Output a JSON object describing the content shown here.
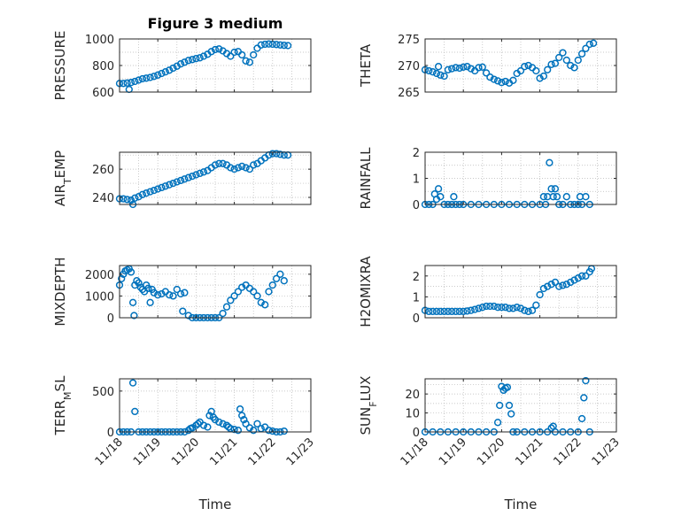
{
  "colors": {
    "marker": "#0072BD",
    "axis": "#262626",
    "grid": "#b8b8b8",
    "background": "#ffffff"
  },
  "chart_data": [
    {
      "type": "scatter",
      "title": "Figure 3 medium",
      "ylabel": "PRESSURE",
      "xlabel": "",
      "xlim": [
        0,
        5
      ],
      "ylim": [
        600,
        1000
      ],
      "yticks": [
        600,
        800,
        1000
      ],
      "xticks": [],
      "grid": true,
      "series": [
        {
          "x": [
            0.0,
            0.1,
            0.2,
            0.25,
            0.3,
            0.4,
            0.5,
            0.6,
            0.7,
            0.8,
            0.9,
            1.0,
            1.1,
            1.2,
            1.3,
            1.4,
            1.5,
            1.6,
            1.7,
            1.8,
            1.9,
            2.0,
            2.1,
            2.2,
            2.3,
            2.4,
            2.5,
            2.6,
            2.7,
            2.8,
            2.9,
            3.0,
            3.1,
            3.2,
            3.3,
            3.4,
            3.5,
            3.6,
            3.7,
            3.8,
            3.9,
            4.0,
            4.1,
            4.2,
            4.3,
            4.4
          ],
          "y": [
            665,
            665,
            668,
            620,
            672,
            680,
            690,
            700,
            705,
            710,
            718,
            728,
            740,
            752,
            765,
            780,
            795,
            812,
            825,
            838,
            845,
            852,
            858,
            870,
            885,
            905,
            920,
            925,
            910,
            890,
            870,
            900,
            905,
            880,
            835,
            825,
            880,
            930,
            955,
            960,
            962,
            960,
            958,
            955,
            952,
            950
          ]
        }
      ]
    },
    {
      "type": "scatter",
      "title": "",
      "ylabel": "THETA",
      "xlabel": "",
      "xlim": [
        0,
        5
      ],
      "ylim": [
        265,
        275
      ],
      "yticks": [
        265,
        270,
        275
      ],
      "xticks": [],
      "grid": true,
      "series": [
        {
          "x": [
            0.0,
            0.1,
            0.2,
            0.3,
            0.35,
            0.4,
            0.5,
            0.6,
            0.7,
            0.8,
            0.9,
            1.0,
            1.1,
            1.2,
            1.3,
            1.4,
            1.5,
            1.6,
            1.7,
            1.8,
            1.9,
            2.0,
            2.1,
            2.2,
            2.3,
            2.4,
            2.5,
            2.6,
            2.7,
            2.8,
            2.9,
            3.0,
            3.1,
            3.2,
            3.3,
            3.4,
            3.5,
            3.6,
            3.7,
            3.8,
            3.9,
            4.0,
            4.1,
            4.2,
            4.3,
            4.4
          ],
          "y": [
            269.2,
            269.0,
            268.8,
            268.5,
            269.8,
            268.2,
            268.0,
            269.2,
            269.4,
            269.6,
            269.5,
            269.7,
            269.8,
            269.4,
            269.0,
            269.6,
            269.7,
            268.6,
            267.8,
            267.4,
            267.1,
            266.8,
            267.0,
            266.7,
            267.2,
            268.5,
            269.0,
            269.8,
            270.0,
            269.6,
            269.0,
            267.6,
            268.0,
            269.2,
            270.2,
            270.4,
            271.5,
            272.4,
            271.0,
            270.0,
            269.6,
            271.0,
            272.2,
            273.2,
            274.0,
            274.2
          ]
        }
      ]
    },
    {
      "type": "scatter",
      "title": "",
      "ylabel": "AIR_TEMP",
      "xlabel": "",
      "xlim": [
        0,
        5
      ],
      "ylim": [
        235,
        272
      ],
      "yticks": [
        240,
        260
      ],
      "xticks": [],
      "grid": true,
      "series": [
        {
          "x": [
            0.0,
            0.1,
            0.2,
            0.3,
            0.35,
            0.4,
            0.5,
            0.6,
            0.7,
            0.8,
            0.9,
            1.0,
            1.1,
            1.2,
            1.3,
            1.4,
            1.5,
            1.6,
            1.7,
            1.8,
            1.9,
            2.0,
            2.1,
            2.2,
            2.3,
            2.4,
            2.5,
            2.6,
            2.7,
            2.8,
            2.9,
            3.0,
            3.1,
            3.2,
            3.3,
            3.4,
            3.5,
            3.6,
            3.7,
            3.8,
            3.9,
            4.0,
            4.1,
            4.2,
            4.3,
            4.4
          ],
          "y": [
            239,
            239,
            238.5,
            238,
            235,
            239.5,
            240.5,
            242,
            243,
            244,
            245,
            246,
            247,
            248,
            249,
            250,
            251,
            252,
            253,
            254,
            255,
            256,
            257,
            258,
            259,
            261,
            263,
            264,
            264,
            263,
            261,
            260,
            261,
            262,
            261,
            260,
            263,
            264,
            266,
            268,
            270,
            271,
            271,
            270.5,
            270,
            270
          ]
        }
      ]
    },
    {
      "type": "scatter",
      "title": "",
      "ylabel": "RAINFALL",
      "xlabel": "",
      "xlim": [
        0,
        5
      ],
      "ylim": [
        0,
        2
      ],
      "yticks": [
        0,
        1,
        2
      ],
      "xticks": [],
      "grid": true,
      "series": [
        {
          "x": [
            0.0,
            0.1,
            0.2,
            0.25,
            0.3,
            0.35,
            0.4,
            0.5,
            0.6,
            0.7,
            0.75,
            0.8,
            0.9,
            1.0,
            1.2,
            1.4,
            1.6,
            1.8,
            2.0,
            2.2,
            2.4,
            2.6,
            2.8,
            3.0,
            3.1,
            3.15,
            3.2,
            3.25,
            3.3,
            3.35,
            3.4,
            3.45,
            3.5,
            3.6,
            3.7,
            3.8,
            3.9,
            4.0,
            4.05,
            4.1,
            4.2,
            4.3
          ],
          "y": [
            0,
            0,
            0,
            0.4,
            0.2,
            0.6,
            0.3,
            0,
            0,
            0,
            0.3,
            0,
            0,
            0,
            0,
            0,
            0,
            0,
            0,
            0,
            0,
            0,
            0,
            0,
            0.3,
            0,
            0.3,
            1.6,
            0.6,
            0.3,
            0.6,
            0.3,
            0,
            0,
            0.3,
            0,
            0,
            0,
            0.3,
            0,
            0.3,
            0
          ]
        }
      ]
    },
    {
      "type": "scatter",
      "title": "",
      "ylabel": "MIXDEPTH",
      "xlabel": "",
      "xlim": [
        0,
        5
      ],
      "ylim": [
        0,
        2400
      ],
      "yticks": [
        0,
        1000,
        2000
      ],
      "xticks": [],
      "grid": true,
      "series": [
        {
          "x": [
            0.0,
            0.05,
            0.1,
            0.15,
            0.2,
            0.25,
            0.3,
            0.35,
            0.38,
            0.4,
            0.45,
            0.5,
            0.55,
            0.6,
            0.65,
            0.7,
            0.75,
            0.8,
            0.85,
            0.9,
            1.0,
            1.1,
            1.2,
            1.3,
            1.4,
            1.5,
            1.6,
            1.65,
            1.7,
            1.8,
            1.9,
            2.0,
            2.1,
            2.2,
            2.3,
            2.4,
            2.5,
            2.6,
            2.7,
            2.8,
            2.9,
            3.0,
            3.1,
            3.2,
            3.3,
            3.4,
            3.5,
            3.6,
            3.7,
            3.8,
            3.9,
            4.0,
            4.1,
            4.2,
            4.3
          ],
          "y": [
            1500,
            1800,
            2000,
            2150,
            2200,
            2250,
            2100,
            700,
            100,
            1500,
            1700,
            1600,
            1400,
            1300,
            1200,
            1500,
            1350,
            700,
            1300,
            1150,
            1050,
            1100,
            1200,
            1050,
            1000,
            1300,
            1100,
            300,
            1150,
            100,
            0,
            0,
            0,
            0,
            0,
            0,
            0,
            0,
            200,
            500,
            800,
            1000,
            1200,
            1400,
            1500,
            1350,
            1200,
            1000,
            700,
            600,
            1200,
            1500,
            1800,
            2000,
            1700
          ]
        }
      ]
    },
    {
      "type": "scatter",
      "title": "",
      "ylabel": "H2OMIXRA",
      "xlabel": "",
      "xlim": [
        0,
        5
      ],
      "ylim": [
        0,
        2.5
      ],
      "yticks": [
        0,
        1,
        2
      ],
      "xticks": [],
      "grid": true,
      "series": [
        {
          "x": [
            0.0,
            0.1,
            0.2,
            0.3,
            0.4,
            0.5,
            0.6,
            0.7,
            0.8,
            0.9,
            1.0,
            1.1,
            1.2,
            1.3,
            1.4,
            1.5,
            1.6,
            1.7,
            1.8,
            1.9,
            2.0,
            2.1,
            2.2,
            2.3,
            2.4,
            2.5,
            2.6,
            2.7,
            2.8,
            2.9,
            3.0,
            3.1,
            3.2,
            3.3,
            3.4,
            3.5,
            3.6,
            3.7,
            3.8,
            3.9,
            4.0,
            4.1,
            4.2,
            4.3,
            4.35
          ],
          "y": [
            0.35,
            0.3,
            0.3,
            0.3,
            0.3,
            0.3,
            0.3,
            0.3,
            0.3,
            0.3,
            0.3,
            0.32,
            0.35,
            0.4,
            0.45,
            0.5,
            0.55,
            0.55,
            0.55,
            0.5,
            0.5,
            0.5,
            0.45,
            0.45,
            0.5,
            0.45,
            0.35,
            0.3,
            0.35,
            0.6,
            1.1,
            1.4,
            1.5,
            1.6,
            1.7,
            1.5,
            1.55,
            1.6,
            1.7,
            1.8,
            1.9,
            2.0,
            2.0,
            2.2,
            2.35
          ]
        }
      ]
    },
    {
      "type": "scatter",
      "title": "",
      "ylabel": "TERR_MSL",
      "xlabel": "Time",
      "xlim": [
        0,
        5
      ],
      "ylim": [
        0,
        650
      ],
      "yticks": [
        0,
        500
      ],
      "xticks": [
        "11/18",
        "11/19",
        "11/20",
        "11/21",
        "11/22",
        "11/23"
      ],
      "grid": true,
      "series": [
        {
          "x": [
            0.0,
            0.1,
            0.2,
            0.3,
            0.35,
            0.4,
            0.5,
            0.6,
            0.7,
            0.8,
            0.9,
            1.0,
            1.1,
            1.2,
            1.3,
            1.4,
            1.5,
            1.6,
            1.7,
            1.8,
            1.85,
            1.9,
            2.0,
            2.05,
            2.1,
            2.2,
            2.3,
            2.35,
            2.4,
            2.45,
            2.5,
            2.6,
            2.7,
            2.8,
            2.85,
            2.9,
            3.0,
            3.1,
            3.15,
            3.2,
            3.25,
            3.3,
            3.4,
            3.5,
            3.6,
            3.7,
            3.8,
            3.9,
            4.0,
            4.1,
            4.2,
            4.3
          ],
          "y": [
            0,
            0,
            0,
            0,
            600,
            250,
            0,
            0,
            0,
            0,
            0,
            0,
            0,
            0,
            0,
            0,
            0,
            0,
            0,
            20,
            40,
            50,
            80,
            100,
            120,
            80,
            60,
            200,
            250,
            180,
            150,
            120,
            100,
            80,
            60,
            40,
            30,
            20,
            280,
            200,
            150,
            100,
            50,
            20,
            100,
            40,
            60,
            20,
            10,
            0,
            0,
            10
          ]
        }
      ]
    },
    {
      "type": "scatter",
      "title": "",
      "ylabel": "SUN_FLUX",
      "xlabel": "Time",
      "xlim": [
        0,
        5
      ],
      "ylim": [
        0,
        28
      ],
      "yticks": [
        0,
        10,
        20
      ],
      "xticks": [
        "11/18",
        "11/19",
        "11/20",
        "11/21",
        "11/22",
        "11/23"
      ],
      "grid": true,
      "series": [
        {
          "x": [
            0.0,
            0.2,
            0.4,
            0.6,
            0.8,
            1.0,
            1.2,
            1.4,
            1.6,
            1.8,
            1.9,
            1.95,
            2.0,
            2.05,
            2.1,
            2.15,
            2.2,
            2.25,
            2.3,
            2.4,
            2.6,
            2.8,
            3.0,
            3.2,
            3.3,
            3.35,
            3.4,
            3.6,
            3.8,
            4.0,
            4.1,
            4.15,
            4.2,
            4.3
          ],
          "y": [
            0,
            0,
            0,
            0,
            0,
            0,
            0,
            0,
            0,
            0,
            5,
            14,
            24,
            22,
            23,
            23.5,
            14,
            9.5,
            0,
            0,
            0,
            0,
            0,
            0,
            2,
            3,
            0,
            0,
            0,
            0,
            7,
            18,
            27,
            0
          ]
        }
      ]
    }
  ]
}
